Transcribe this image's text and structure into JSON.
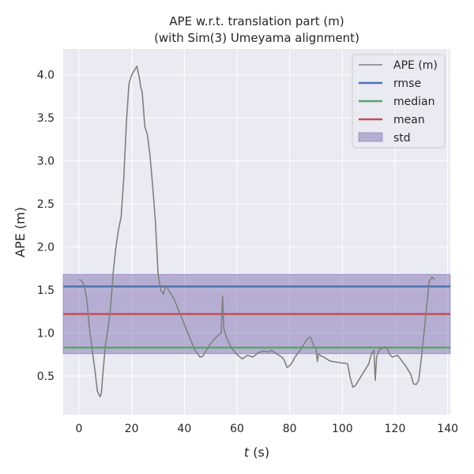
{
  "chart_data": {
    "type": "line",
    "title_line1": "APE w.r.t. translation part (m)",
    "title_line2": "(with Sim(3) Umeyama alignment)",
    "xlabel_var": "t",
    "xlabel_unit": " (s)",
    "ylabel": "APE (m)",
    "xlim": [
      -6,
      141
    ],
    "ylim": [
      0.05,
      4.3
    ],
    "xticks": [
      0,
      20,
      40,
      60,
      80,
      100,
      120,
      140
    ],
    "yticks": [
      0.5,
      1.0,
      1.5,
      2.0,
      2.5,
      3.0,
      3.5,
      4.0
    ],
    "xtick_labels": [
      "0",
      "20",
      "40",
      "60",
      "80",
      "100",
      "120",
      "140"
    ],
    "ytick_labels": [
      "0.5",
      "1.0",
      "1.5",
      "2.0",
      "2.5",
      "3.0",
      "3.5",
      "4.0"
    ],
    "grid": true,
    "legend_position": "top-right",
    "series": [
      {
        "name": "APE (m)",
        "color": "#808080",
        "x": [
          0,
          1,
          2,
          3,
          4,
          5,
          6,
          7,
          8,
          8.5,
          9,
          10,
          11,
          12,
          13,
          14,
          15,
          16,
          17,
          18,
          19,
          20,
          21,
          22,
          23,
          23.5,
          24,
          25,
          26,
          27,
          28,
          29,
          30,
          31,
          32,
          33,
          34,
          35,
          36,
          38,
          40,
          42,
          44,
          46,
          47,
          48,
          50,
          52,
          54,
          54.5,
          55,
          56,
          58,
          60,
          62,
          63,
          64,
          65,
          66,
          68,
          70,
          72,
          73,
          75,
          77,
          78,
          79,
          80,
          81,
          82,
          84,
          86,
          87,
          88,
          89,
          90,
          90.5,
          91,
          92,
          93,
          94,
          95,
          96,
          98,
          100,
          101,
          102,
          103,
          104,
          105,
          106,
          108,
          110,
          111,
          112,
          112.5,
          113,
          114,
          115,
          116,
          117,
          118,
          119,
          120,
          121,
          122,
          124,
          125,
          126,
          127,
          128,
          129,
          130,
          131,
          132,
          133,
          134,
          135
        ],
        "values": [
          1.62,
          1.61,
          1.55,
          1.38,
          1.05,
          0.8,
          0.58,
          0.32,
          0.26,
          0.3,
          0.5,
          0.85,
          1.05,
          1.3,
          1.7,
          2.0,
          2.2,
          2.35,
          2.8,
          3.45,
          3.9,
          4.0,
          4.05,
          4.1,
          3.95,
          3.85,
          3.8,
          3.4,
          3.3,
          3.05,
          2.7,
          2.3,
          1.7,
          1.5,
          1.45,
          1.55,
          1.5,
          1.45,
          1.4,
          1.25,
          1.1,
          0.95,
          0.8,
          0.72,
          0.73,
          0.78,
          0.88,
          0.95,
          1.0,
          1.43,
          1.05,
          0.95,
          0.82,
          0.75,
          0.7,
          0.72,
          0.74,
          0.73,
          0.72,
          0.77,
          0.79,
          0.78,
          0.8,
          0.76,
          0.72,
          0.68,
          0.6,
          0.62,
          0.66,
          0.72,
          0.8,
          0.9,
          0.94,
          0.95,
          0.86,
          0.82,
          0.67,
          0.76,
          0.73,
          0.72,
          0.7,
          0.68,
          0.67,
          0.66,
          0.65,
          0.65,
          0.64,
          0.48,
          0.37,
          0.39,
          0.44,
          0.54,
          0.64,
          0.75,
          0.8,
          0.45,
          0.72,
          0.8,
          0.82,
          0.84,
          0.82,
          0.75,
          0.72,
          0.73,
          0.74,
          0.7,
          0.62,
          0.57,
          0.52,
          0.41,
          0.4,
          0.45,
          0.7,
          1.0,
          1.3,
          1.6,
          1.65,
          1.62
        ]
      },
      {
        "name": "rmse",
        "color": "#4c72b0",
        "value": 1.54
      },
      {
        "name": "median",
        "color": "#55a868",
        "value": 0.83
      },
      {
        "name": "mean",
        "color": "#c44e52",
        "value": 1.22
      },
      {
        "name": "std",
        "color": "#8172b2",
        "band": [
          0.76,
          1.68
        ]
      }
    ]
  }
}
